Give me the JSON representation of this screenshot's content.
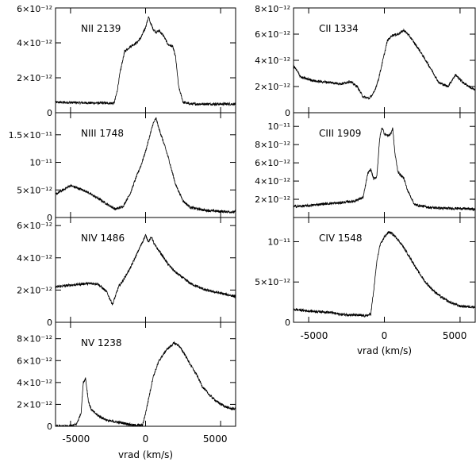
{
  "chart_data": [
    {
      "type": "line",
      "label": "NII 2139",
      "xlim": [
        -6000,
        6000
      ],
      "ylim": [
        0,
        6e-12
      ],
      "yticks": [
        "0",
        "2×10⁻¹²",
        "4×10⁻¹²",
        "6×10⁻¹²"
      ],
      "x": [
        -6000,
        -3000,
        -2100,
        -1900,
        -1700,
        -1400,
        -1000,
        -600,
        -300,
        0,
        200,
        300,
        500,
        700,
        900,
        1200,
        1500,
        1800,
        2000,
        2200,
        2500,
        3000,
        4500,
        6000
      ],
      "y": [
        6e-13,
        5.5e-13,
        5.5e-13,
        1.2e-12,
        2.3e-12,
        3.5e-12,
        3.8e-12,
        4e-12,
        4.3e-12,
        4.9e-12,
        5.5e-12,
        5.2e-12,
        4.8e-12,
        4.6e-12,
        4.7e-12,
        4.4e-12,
        3.9e-12,
        3.8e-12,
        3.2e-12,
        1.5e-12,
        6e-13,
        5e-13,
        5e-13,
        5e-13
      ]
    },
    {
      "type": "line",
      "label": "NIII 1748",
      "xlim": [
        -6000,
        6000
      ],
      "ylim": [
        0,
        1.9e-11
      ],
      "yticks": [
        "0",
        "5×10⁻¹²",
        "10⁻¹¹",
        "1.5×10⁻¹¹"
      ],
      "x": [
        -6000,
        -5500,
        -5000,
        -4000,
        -3000,
        -2500,
        -2000,
        -1500,
        -1000,
        -600,
        -300,
        0,
        300,
        500,
        700,
        900,
        1100,
        1500,
        2000,
        2500,
        3000,
        4000,
        5000,
        6000
      ],
      "y": [
        4.2e-12,
        5e-12,
        5.8e-12,
        4.8e-12,
        3.2e-12,
        2.3e-12,
        1.5e-12,
        2e-12,
        4.5e-12,
        7.5e-12,
        9.5e-12,
        1.2e-11,
        1.5e-11,
        1.7e-11,
        1.8e-11,
        1.6e-11,
        1.45e-11,
        1.1e-11,
        6e-12,
        3e-12,
        1.8e-12,
        1.3e-12,
        1.1e-12,
        1e-12
      ]
    },
    {
      "type": "line",
      "label": "NIV 1486",
      "xlim": [
        -6000,
        6000
      ],
      "ylim": [
        0,
        6.5e-12
      ],
      "yticks": [
        "0",
        "2×10⁻¹²",
        "4×10⁻¹²",
        "6×10⁻¹²"
      ],
      "x": [
        -6000,
        -5000,
        -4000,
        -3200,
        -2600,
        -2200,
        -1800,
        -1500,
        -1000,
        -500,
        -200,
        0,
        200,
        400,
        600,
        1000,
        1500,
        2000,
        3000,
        4000,
        5000,
        6000
      ],
      "y": [
        2.2e-12,
        2.3e-12,
        2.4e-12,
        2.4e-12,
        1.9e-12,
        1.1e-12,
        2.2e-12,
        2.6e-12,
        3.4e-12,
        4.4e-12,
        5e-12,
        5.4e-12,
        5e-12,
        5.3e-12,
        4.8e-12,
        4.3e-12,
        3.6e-12,
        3.1e-12,
        2.4e-12,
        2e-12,
        1.8e-12,
        1.6e-12
      ]
    },
    {
      "type": "line",
      "label": "NV 1238",
      "xlim": [
        -6000,
        6000
      ],
      "ylim": [
        0,
        9.5e-12
      ],
      "yticks": [
        "0",
        "2×10⁻¹²",
        "4×10⁻¹²",
        "6×10⁻¹²",
        "8×10⁻¹²"
      ],
      "x": [
        -6000,
        -5000,
        -4600,
        -4300,
        -4150,
        -4000,
        -3800,
        -3600,
        -3200,
        -2500,
        -1500,
        -800,
        -200,
        0,
        200,
        500,
        900,
        1400,
        1900,
        2200,
        2600,
        3000,
        3400,
        3800,
        4300,
        4800,
        5300,
        5700,
        6000
      ],
      "y": [
        0,
        0,
        2e-13,
        1.2e-12,
        4e-12,
        4.4e-12,
        2.2e-12,
        1.5e-12,
        1e-12,
        5e-13,
        3e-13,
        1e-13,
        1e-13,
        1.2e-12,
        2.5e-12,
        4.5e-12,
        6e-12,
        7e-12,
        7.6e-12,
        7.4e-12,
        6.6e-12,
        5.6e-12,
        4.7e-12,
        3.6e-12,
        2.8e-12,
        2.2e-12,
        1.8e-12,
        1.6e-12,
        1.6e-12
      ]
    },
    {
      "type": "line",
      "label": "CII 1334",
      "xlim": [
        -6000,
        6000
      ],
      "ylim": [
        0,
        8e-12
      ],
      "yticks": [
        "0",
        "2×10⁻¹²",
        "4×10⁻¹²",
        "6×10⁻¹²",
        "8×10⁻¹²"
      ],
      "x": [
        -6000,
        -5500,
        -4500,
        -3500,
        -2800,
        -2300,
        -1800,
        -1400,
        -1000,
        -700,
        -400,
        -100,
        200,
        500,
        900,
        1300,
        1700,
        2300,
        3000,
        3600,
        4200,
        4700,
        5200,
        6000
      ],
      "y": [
        3.6e-12,
        2.7e-12,
        2.4e-12,
        2.3e-12,
        2.2e-12,
        2.4e-12,
        2e-12,
        1.2e-12,
        1.1e-12,
        1.5e-12,
        2.5e-12,
        4e-12,
        5.5e-12,
        5.9e-12,
        6e-12,
        6.3e-12,
        5.8e-12,
        4.8e-12,
        3.5e-12,
        2.3e-12,
        2e-12,
        2.9e-12,
        2.3e-12,
        1.7e-12
      ]
    },
    {
      "type": "line",
      "label": "CIII 1909",
      "xlim": [
        -6000,
        6000
      ],
      "ylim": [
        0,
        1.15e-11
      ],
      "yticks": [
        "2×10⁻¹²",
        "4×10⁻¹²",
        "6×10⁻¹²",
        "8×10⁻¹²",
        "10⁻¹¹"
      ],
      "x": [
        -6000,
        -5000,
        -4000,
        -3000,
        -2000,
        -1400,
        -1100,
        -900,
        -700,
        -500,
        -300,
        -150,
        0,
        200,
        400,
        550,
        700,
        900,
        1100,
        1300,
        1500,
        2000,
        3000,
        4000,
        5000,
        6000
      ],
      "y": [
        1.2e-12,
        1.3e-12,
        1.5e-12,
        1.6e-12,
        1.8e-12,
        2.2e-12,
        4.8e-12,
        5.3e-12,
        4.2e-12,
        4.5e-12,
        8.8e-12,
        9.9e-12,
        9.2e-12,
        9e-12,
        9.1e-12,
        9.8e-12,
        7e-12,
        5e-12,
        4.6e-12,
        4.3e-12,
        3.1e-12,
        1.4e-12,
        1.1e-12,
        1e-12,
        1e-12,
        9e-13
      ]
    },
    {
      "type": "line",
      "label": "CIV 1548",
      "xlim": [
        -6000,
        6000
      ],
      "ylim": [
        0,
        1.3e-11
      ],
      "yticks": [
        "0",
        "5×10⁻¹²",
        "10⁻¹¹"
      ],
      "x": [
        -6000,
        -5000,
        -4000,
        -3500,
        -3000,
        -2000,
        -1200,
        -900,
        -700,
        -500,
        -300,
        0,
        300,
        500,
        800,
        1200,
        1700,
        2200,
        2700,
        3200,
        3700,
        4300,
        5000,
        6000
      ],
      "y": [
        1.6e-12,
        1.4e-12,
        1.3e-12,
        1.2e-12,
        1e-12,
        9e-13,
        8e-13,
        1e-12,
        4e-12,
        7.5e-12,
        9.5e-12,
        1.06e-11,
        1.12e-11,
        1.1e-11,
        1.05e-11,
        9.5e-12,
        8e-12,
        6.4e-12,
        5e-12,
        4e-12,
        3.2e-12,
        2.5e-12,
        2e-12,
        1.9e-12
      ]
    }
  ],
  "xticks": [
    "-5000",
    "0",
    "5000"
  ],
  "xlabel": "vrad (km/s)"
}
